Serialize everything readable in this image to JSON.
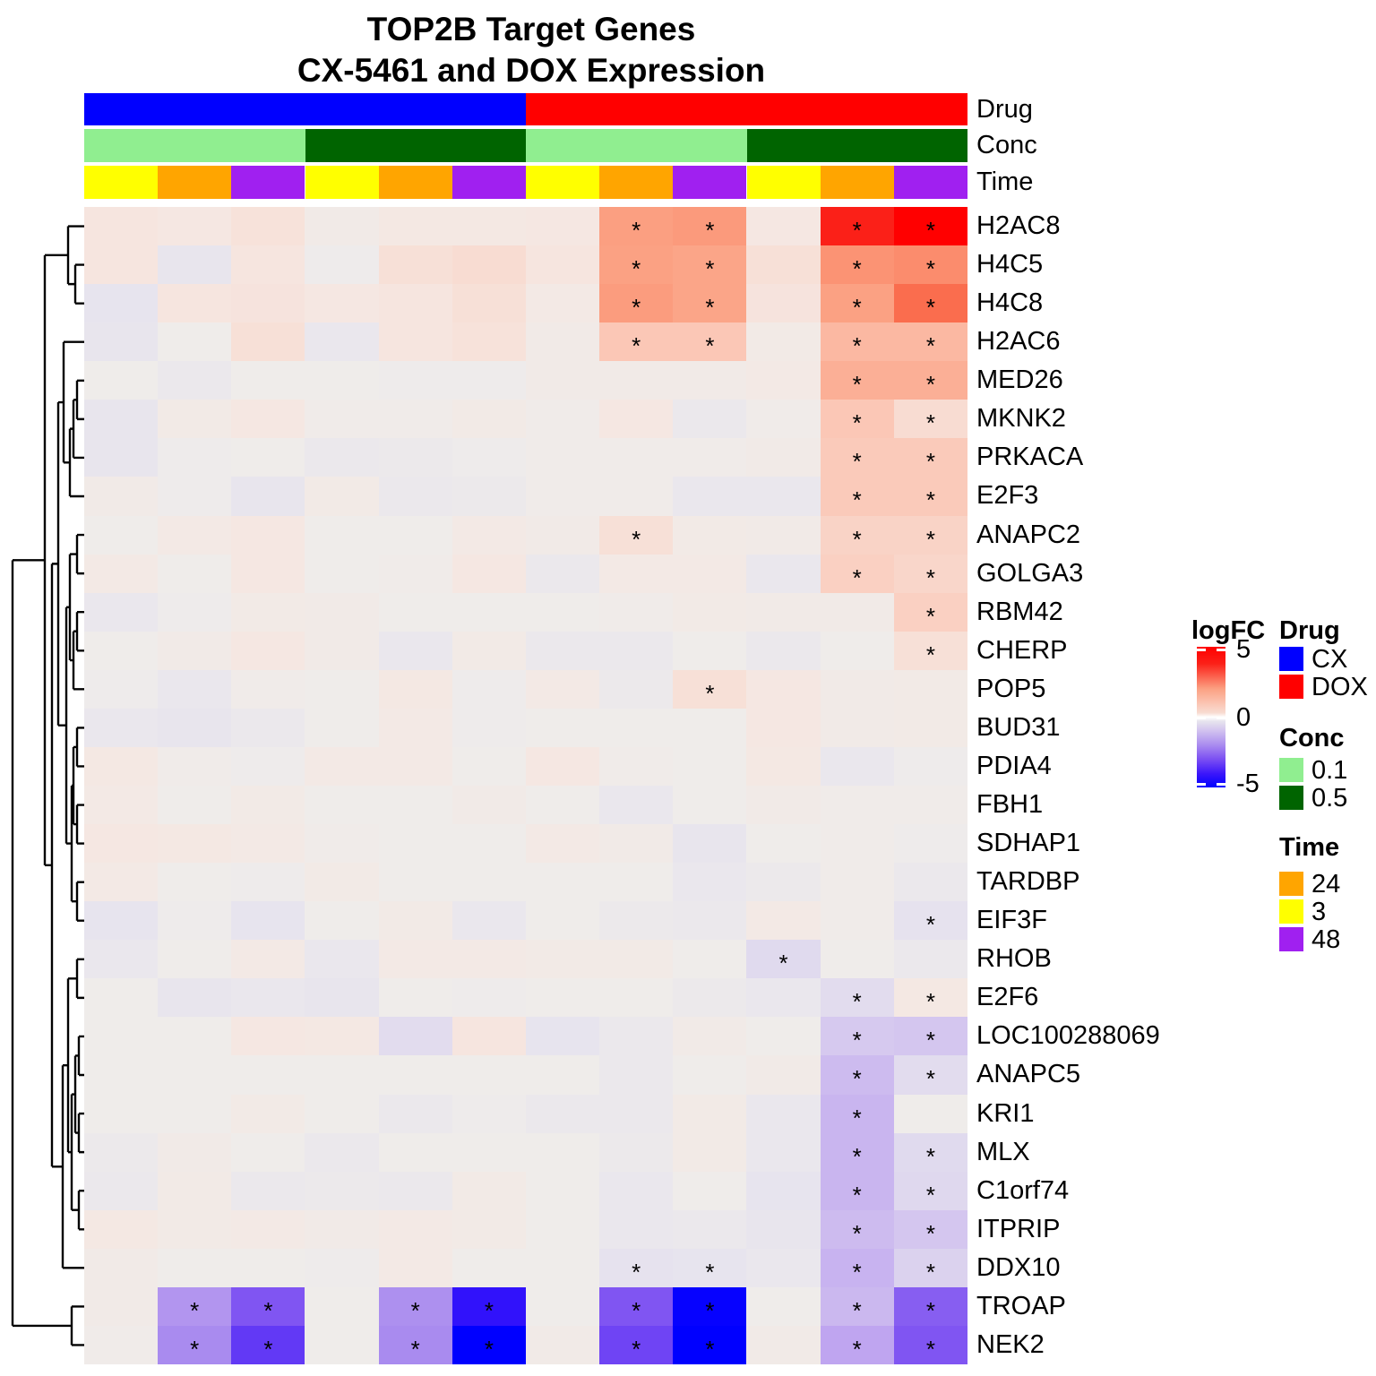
{
  "title": {
    "line1": "TOP2B Target Genes",
    "line2": "CX-5461 and DOX Expression"
  },
  "annotation_labels": {
    "drug": "Drug",
    "conc": "Conc",
    "time": "Time"
  },
  "colors": {
    "drug": {
      "CX": "#0000FF",
      "DOX": "#FF0000"
    },
    "conc": {
      "0.1": "#90EE90",
      "0.5": "#006400"
    },
    "time": {
      "3": "#FFFF00",
      "24": "#FFA500",
      "48": "#A020F0"
    }
  },
  "chart_data": {
    "type": "heatmap",
    "title": "TOP2B Target Genes CX-5461 and DOX Expression",
    "value_name": "logFC",
    "value_range": [
      -5,
      5
    ],
    "rows": [
      "H2AC8",
      "H4C5",
      "H4C8",
      "H2AC6",
      "MED26",
      "MKNK2",
      "PRKACA",
      "E2F3",
      "ANAPC2",
      "GOLGA3",
      "RBM42",
      "CHERP",
      "POP5",
      "BUD31",
      "PDIA4",
      "FBH1",
      "SDHAP1",
      "TARDBP",
      "EIF3F",
      "RHOB",
      "E2F6",
      "LOC100288069",
      "ANAPC5",
      "KRI1",
      "MLX",
      "C1orf74",
      "ITPRIP",
      "DDX10",
      "TROAP",
      "NEK2"
    ],
    "col_drug": [
      "CX",
      "CX",
      "CX",
      "CX",
      "CX",
      "CX",
      "DOX",
      "DOX",
      "DOX",
      "DOX",
      "DOX",
      "DOX"
    ],
    "col_conc": [
      "0.1",
      "0.1",
      "0.1",
      "0.5",
      "0.5",
      "0.5",
      "0.1",
      "0.1",
      "0.1",
      "0.5",
      "0.5",
      "0.5"
    ],
    "col_time": [
      "3",
      "24",
      "48",
      "3",
      "24",
      "48",
      "3",
      "24",
      "48",
      "3",
      "24",
      "48"
    ],
    "matrix": [
      [
        0.35,
        0.3,
        0.45,
        0.1,
        0.25,
        0.25,
        0.3,
        2.05,
        2.15,
        0.3,
        4.4,
        5
      ],
      [
        0.35,
        -0.25,
        0.35,
        -0.05,
        0.5,
        0.6,
        0.35,
        2,
        1.9,
        0.5,
        2.3,
        2.45
      ],
      [
        -0.3,
        0.35,
        0.4,
        0.3,
        0.35,
        0.5,
        0.2,
        2.1,
        1.9,
        0.4,
        2,
        3.1
      ],
      [
        -0.25,
        0,
        0.5,
        -0.2,
        0.35,
        0.45,
        0.1,
        0.95,
        0.95,
        0.15,
        1.35,
        1.35
      ],
      [
        0,
        -0.15,
        0,
        0,
        -0.05,
        -0.05,
        0.1,
        0.1,
        0.1,
        0.2,
        1.6,
        1.6
      ],
      [
        -0.25,
        0.15,
        0.3,
        0.05,
        0.05,
        0.15,
        0.05,
        0.3,
        -0.15,
        0.05,
        0.95,
        0.6
      ],
      [
        -0.25,
        -0.05,
        0,
        -0.15,
        -0.1,
        -0.05,
        0.05,
        0.05,
        0.05,
        0.1,
        0.9,
        0.9
      ],
      [
        0.1,
        -0.05,
        -0.25,
        0.15,
        -0.15,
        -0.1,
        0.05,
        0.05,
        -0.2,
        -0.2,
        0.9,
        0.9
      ],
      [
        0,
        0.2,
        0.3,
        0,
        0,
        0.2,
        0.1,
        0.5,
        0.15,
        0.1,
        0.75,
        0.75
      ],
      [
        0.2,
        0,
        0.3,
        0,
        0.05,
        0.3,
        -0.15,
        0.2,
        0.2,
        -0.2,
        0.8,
        0.7
      ],
      [
        -0.2,
        -0.05,
        0.15,
        0.1,
        0,
        0,
        0,
        0.05,
        0.15,
        0.1,
        0.1,
        0.8
      ],
      [
        0,
        0.1,
        0.3,
        0.1,
        -0.2,
        0.15,
        -0.15,
        -0.15,
        0,
        -0.15,
        0,
        0.5
      ],
      [
        -0.05,
        -0.2,
        0.05,
        0,
        0.25,
        -0.05,
        0.2,
        -0.1,
        0.5,
        0.3,
        0.1,
        0.15
      ],
      [
        -0.2,
        -0.25,
        -0.15,
        0,
        0.2,
        -0.05,
        0,
        0,
        0,
        0.3,
        0.1,
        0.15
      ],
      [
        0.25,
        0.05,
        -0.05,
        0.2,
        0.2,
        0,
        0.3,
        0.05,
        0,
        0.25,
        -0.2,
        -0.05
      ],
      [
        0.2,
        0,
        0.15,
        0,
        0,
        0.1,
        0,
        -0.2,
        0,
        0.1,
        0.05,
        0.05
      ],
      [
        0.3,
        0.25,
        0.2,
        0.05,
        0,
        0,
        0.2,
        0.1,
        -0.25,
        0,
        0.05,
        -0.05
      ],
      [
        0.2,
        0,
        -0.05,
        0.15,
        0,
        0,
        0,
        0,
        -0.2,
        -0.1,
        0.05,
        -0.15
      ],
      [
        -0.3,
        -0.05,
        -0.3,
        0,
        0.15,
        -0.2,
        0,
        -0.1,
        -0.15,
        0.2,
        0.05,
        -0.35
      ],
      [
        -0.2,
        0,
        0.2,
        -0.2,
        0.2,
        0.2,
        0.15,
        0.15,
        0,
        -0.55,
        0,
        -0.15
      ],
      [
        0,
        -0.25,
        -0.2,
        -0.25,
        0,
        -0.05,
        0,
        0,
        -0.1,
        -0.2,
        -0.5,
        0.25
      ],
      [
        0,
        0,
        0.3,
        0.25,
        -0.5,
        0.35,
        -0.3,
        -0.15,
        0.1,
        0,
        -0.85,
        -0.9
      ],
      [
        0,
        0,
        0,
        0,
        0,
        0,
        0,
        -0.15,
        0,
        0.1,
        -1.1,
        -0.5
      ],
      [
        0,
        0,
        0.15,
        0,
        -0.15,
        -0.05,
        -0.15,
        -0.15,
        0.15,
        -0.2,
        -1.2,
        0
      ],
      [
        -0.1,
        0.1,
        0,
        -0.15,
        0,
        0,
        0,
        -0.1,
        0.15,
        -0.2,
        -1.2,
        -0.55
      ],
      [
        -0.15,
        0.15,
        -0.15,
        -0.1,
        -0.15,
        0.15,
        0,
        -0.2,
        0,
        -0.3,
        -1.2,
        -0.6
      ],
      [
        0.25,
        0.15,
        0.2,
        0.1,
        0.2,
        0.15,
        0,
        -0.2,
        -0.15,
        -0.25,
        -1.1,
        -0.9
      ],
      [
        0.1,
        0,
        0,
        -0.05,
        0.2,
        0,
        0,
        -0.35,
        -0.3,
        -0.2,
        -1.25,
        -0.7
      ],
      [
        0.1,
        -1.8,
        -2.9,
        0,
        -1.9,
        -4.2,
        0,
        -2.9,
        -4.9,
        0,
        -1.15,
        -2.75
      ],
      [
        0.05,
        -2,
        -3.4,
        0,
        -2,
        -5,
        0.1,
        -3.2,
        -5,
        0.1,
        -1.5,
        -2.9
      ]
    ],
    "significant": [
      [
        8,
        9,
        11,
        12
      ],
      [
        8,
        9,
        11,
        12
      ],
      [
        8,
        9,
        11,
        12
      ],
      [
        8,
        9,
        11,
        12
      ],
      [
        11,
        12
      ],
      [
        11,
        12
      ],
      [
        11,
        12
      ],
      [
        11,
        12
      ],
      [
        8,
        11,
        12
      ],
      [
        11,
        12
      ],
      [
        12
      ],
      [
        12
      ],
      [
        9
      ],
      [],
      [],
      [],
      [],
      [],
      [
        12
      ],
      [
        10
      ],
      [
        11,
        12
      ],
      [
        11,
        12
      ],
      [
        11,
        12
      ],
      [
        11
      ],
      [
        11,
        12
      ],
      [
        11,
        12
      ],
      [
        11,
        12
      ],
      [
        8,
        9,
        11,
        12
      ],
      [
        2,
        3,
        5,
        6,
        8,
        9,
        11,
        12
      ],
      [
        2,
        3,
        5,
        6,
        8,
        9,
        11,
        12
      ]
    ],
    "row_dendrogram": {
      "x": 14,
      "c": [
        {
          "x": 50,
          "c": [
            {
              "x": 76,
              "c": [
                1,
                {
                  "x": 84,
                  "c": [
                    2,
                    3
                  ]
                }
              ]
            },
            {
              "x": 58,
              "c": [
                {
                  "x": 65,
                  "c": [
                    {
                      "x": 71,
                      "c": [
                        4,
                        {
                          "x": 78,
                          "c": [
                            {
                              "x": 82,
                              "c": [
                                {
                                  "x": 86,
                                  "c": [
                                    5,
                                    6
                                  ]
                                },
                                7
                              ]
                            },
                            8
                          ]
                        }
                      ]
                    },
                    {
                      "x": 74,
                      "c": [
                        {
                          "x": 78,
                          "c": [
                            {
                              "x": 86,
                              "c": [
                                9,
                                10
                              ]
                            },
                            {
                              "x": 82,
                              "c": [
                                {
                                  "x": 86,
                                  "c": [
                                    11,
                                    12
                                  ]
                                },
                                13
                              ]
                            }
                          ]
                        },
                        {
                          "x": 80,
                          "c": [
                            {
                              "x": 82,
                              "c": [
                                {
                                  "x": 86,
                                  "c": [
                                    14,
                                    15
                                  ]
                                },
                                {
                                  "x": 86,
                                  "c": [
                                    16,
                                    17
                                  ]
                                }
                              ]
                            },
                            {
                              "x": 86,
                              "c": [
                                18,
                                19
                              ]
                            }
                          ]
                        }
                      ]
                    }
                  ]
                },
                {
                  "x": 70,
                  "c": [
                    {
                      "x": 76,
                      "c": [
                        {
                          "x": 86,
                          "c": [
                            20,
                            21
                          ]
                        },
                        {
                          "x": 80,
                          "c": [
                            {
                              "x": 84,
                              "c": [
                                {
                                  "x": 88,
                                  "c": [
                                    22,
                                    23
                                  ]
                                },
                                {
                                  "x": 88,
                                  "c": [
                                    24,
                                    25
                                  ]
                                }
                              ]
                            },
                            {
                              "x": 88,
                              "c": [
                                26,
                                27
                              ]
                            }
                          ]
                        }
                      ]
                    },
                    28
                  ]
                }
              ]
            }
          ]
        },
        {
          "x": 80,
          "c": [
            29,
            30
          ]
        }
      ]
    }
  },
  "legend": {
    "logfc": {
      "title": "logFC",
      "ticks": [
        "5",
        "0",
        "-5"
      ]
    },
    "drug": {
      "title": "Drug",
      "items": [
        {
          "label": "CX",
          "color": "#0000FF"
        },
        {
          "label": "DOX",
          "color": "#FF0000"
        }
      ]
    },
    "conc": {
      "title": "Conc",
      "items": [
        {
          "label": "0.1",
          "color": "#90EE90"
        },
        {
          "label": "0.5",
          "color": "#006400"
        }
      ]
    },
    "time": {
      "title": "Time",
      "items": [
        {
          "label": "24",
          "color": "#FFA500"
        },
        {
          "label": "3",
          "color": "#FFFF00"
        },
        {
          "label": "48",
          "color": "#A020F0"
        }
      ]
    }
  }
}
